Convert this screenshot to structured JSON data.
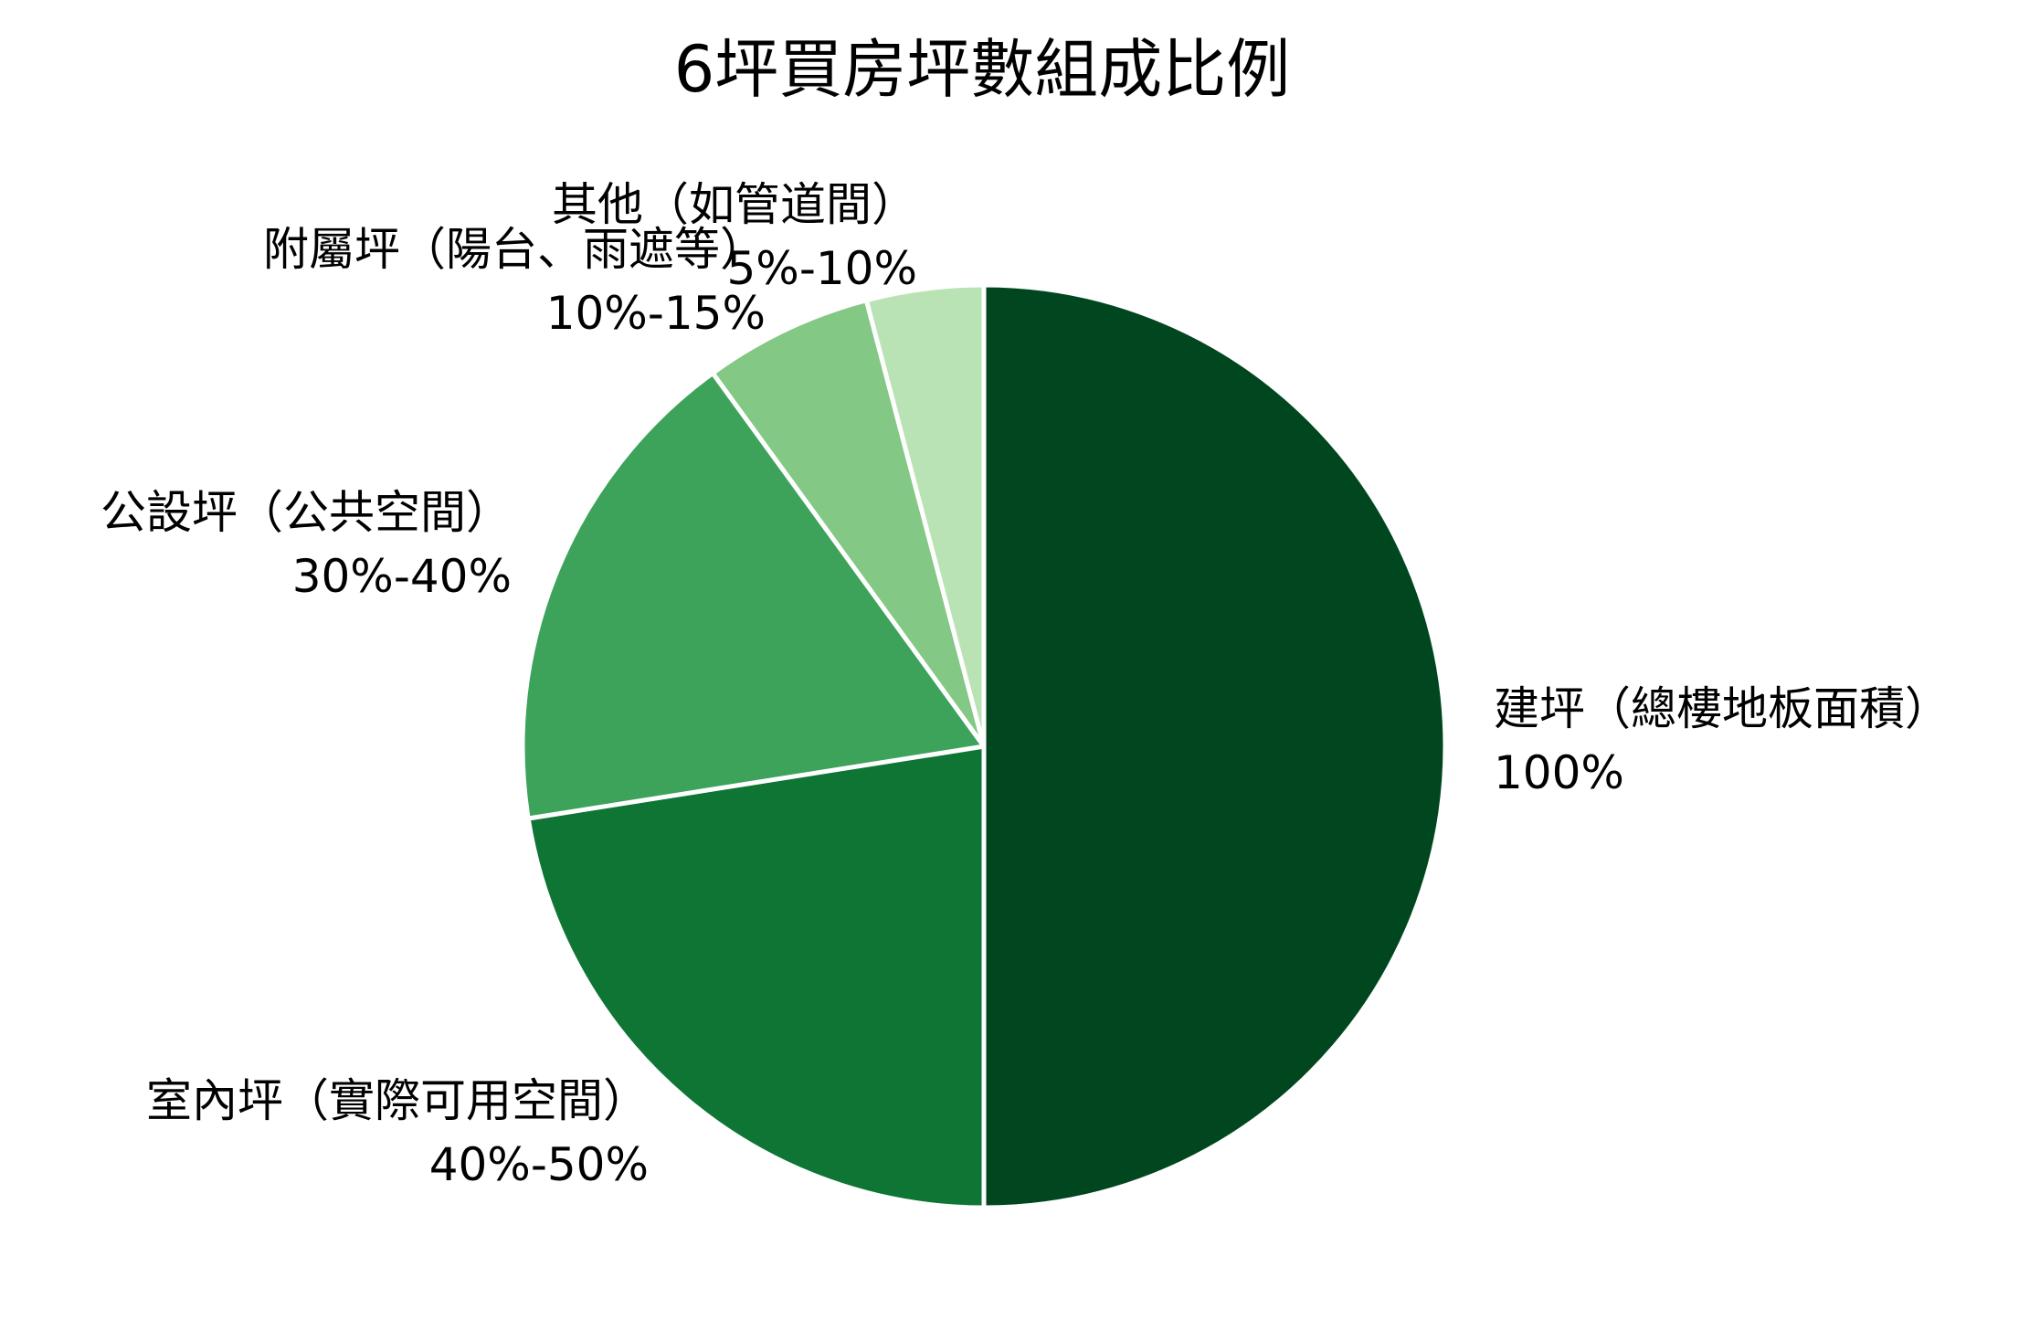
{
  "chart_data": {
    "type": "pie",
    "title": "6坪買房坪數組成比例",
    "start": "12 o'clock",
    "direction": "clockwise",
    "slice_border": "#ffffff",
    "slices": [
      {
        "name": "建坪（總樓地板面積）",
        "label": "100%",
        "value": 50,
        "color": "#00471F"
      },
      {
        "name": "室內坪（實際可用空間）",
        "label": "40%-50%",
        "value": 22.5,
        "color": "#0E7535"
      },
      {
        "name": "公設坪（公共空間）",
        "label": "30%-40%",
        "value": 17.5,
        "color": "#3DA35B"
      },
      {
        "name": "附屬坪（陽台、雨遮等）",
        "label": "10%-15%",
        "value": 5.9,
        "color": "#83C885"
      },
      {
        "name": "其他（如管道間）",
        "label": "5%-10%",
        "value": 4.1,
        "color": "#B9E3B5"
      }
    ]
  }
}
